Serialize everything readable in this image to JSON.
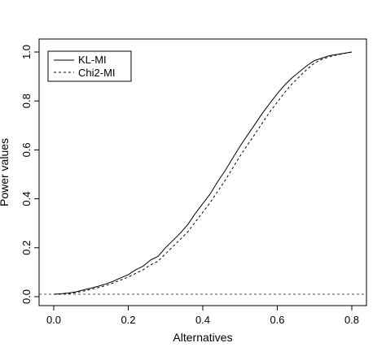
{
  "chart_data": {
    "type": "line",
    "title": "",
    "xlabel": "Alternatives",
    "ylabel": "Power values",
    "xlim": [
      0.0,
      0.8
    ],
    "ylim": [
      0.0,
      1.0
    ],
    "x_ticks": [
      "0.0",
      "0.2",
      "0.4",
      "0.6",
      "0.8"
    ],
    "y_ticks": [
      "0.0",
      "0.2",
      "0.4",
      "0.6",
      "0.8",
      "1.0"
    ],
    "grid": false,
    "legend_position": "top-left",
    "reference_line": {
      "y": 0.01,
      "style": "dashed",
      "color": "#555555"
    },
    "series": [
      {
        "name": "KL-MI",
        "style": "solid",
        "color": "#000000",
        "x": [
          0.0,
          0.02,
          0.04,
          0.06,
          0.08,
          0.1,
          0.12,
          0.14,
          0.16,
          0.18,
          0.2,
          0.22,
          0.24,
          0.26,
          0.28,
          0.3,
          0.32,
          0.34,
          0.36,
          0.38,
          0.4,
          0.42,
          0.44,
          0.46,
          0.48,
          0.5,
          0.52,
          0.54,
          0.56,
          0.58,
          0.6,
          0.62,
          0.64,
          0.66,
          0.68,
          0.7,
          0.72,
          0.74,
          0.76,
          0.78,
          0.8
        ],
        "y": [
          0.01,
          0.012,
          0.015,
          0.02,
          0.028,
          0.035,
          0.043,
          0.052,
          0.063,
          0.077,
          0.09,
          0.11,
          0.125,
          0.15,
          0.165,
          0.2,
          0.23,
          0.26,
          0.295,
          0.34,
          0.38,
          0.42,
          0.47,
          0.515,
          0.565,
          0.615,
          0.66,
          0.705,
          0.75,
          0.79,
          0.83,
          0.865,
          0.895,
          0.92,
          0.945,
          0.965,
          0.975,
          0.985,
          0.99,
          0.995,
          1.0
        ]
      },
      {
        "name": "Chi2-MI",
        "style": "dashed",
        "color": "#000000",
        "x": [
          0.0,
          0.02,
          0.04,
          0.06,
          0.08,
          0.1,
          0.12,
          0.14,
          0.16,
          0.18,
          0.2,
          0.22,
          0.24,
          0.26,
          0.28,
          0.3,
          0.32,
          0.34,
          0.36,
          0.38,
          0.4,
          0.42,
          0.44,
          0.46,
          0.48,
          0.5,
          0.52,
          0.54,
          0.56,
          0.58,
          0.6,
          0.62,
          0.64,
          0.66,
          0.68,
          0.7,
          0.72,
          0.74,
          0.76,
          0.78,
          0.8
        ],
        "y": [
          0.01,
          0.011,
          0.013,
          0.017,
          0.023,
          0.03,
          0.037,
          0.046,
          0.056,
          0.068,
          0.08,
          0.095,
          0.11,
          0.13,
          0.145,
          0.175,
          0.205,
          0.235,
          0.265,
          0.305,
          0.345,
          0.385,
          0.43,
          0.475,
          0.525,
          0.575,
          0.62,
          0.665,
          0.71,
          0.755,
          0.795,
          0.835,
          0.87,
          0.9,
          0.93,
          0.955,
          0.97,
          0.98,
          0.988,
          0.994,
          1.0
        ]
      }
    ]
  }
}
